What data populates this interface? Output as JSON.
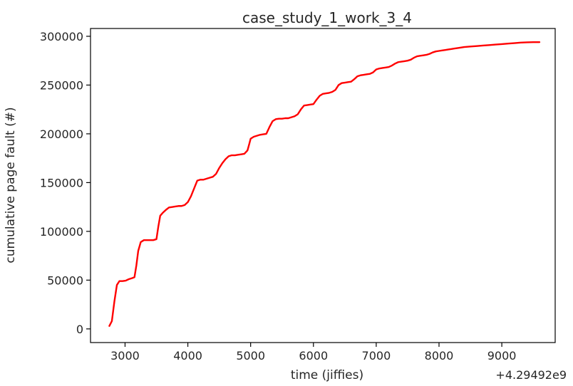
{
  "chart_data": {
    "type": "line",
    "title": "case_study_1_work_3_4",
    "xlabel": "time (jiffies)",
    "ylabel": "cumulative page fault (#)",
    "x_offset_label": "+4.29492e9",
    "xlim": [
      2450,
      9850
    ],
    "ylim": [
      -14000,
      308000
    ],
    "x_ticks": [
      3000,
      4000,
      5000,
      6000,
      7000,
      8000,
      9000
    ],
    "y_ticks": [
      0,
      50000,
      100000,
      150000,
      200000,
      250000,
      300000
    ],
    "grid": false,
    "series": [
      {
        "color": "#ff0000",
        "x": [
          2750,
          2790,
          2830,
          2870,
          2910,
          2960,
          3010,
          3060,
          3110,
          3150,
          3180,
          3210,
          3250,
          3300,
          3350,
          3400,
          3450,
          3500,
          3530,
          3560,
          3600,
          3650,
          3700,
          3750,
          3800,
          3850,
          3900,
          3950,
          4000,
          4050,
          4100,
          4150,
          4200,
          4250,
          4300,
          4350,
          4400,
          4450,
          4500,
          4550,
          4600,
          4650,
          4700,
          4750,
          4800,
          4850,
          4900,
          4950,
          4980,
          5000,
          5050,
          5100,
          5150,
          5200,
          5250,
          5300,
          5350,
          5400,
          5450,
          5500,
          5550,
          5600,
          5650,
          5700,
          5750,
          5800,
          5850,
          5900,
          5950,
          6000,
          6050,
          6100,
          6150,
          6200,
          6250,
          6300,
          6350,
          6400,
          6450,
          6500,
          6550,
          6600,
          6650,
          6700,
          6750,
          6800,
          6850,
          6900,
          6950,
          7000,
          7050,
          7100,
          7150,
          7200,
          7250,
          7300,
          7350,
          7400,
          7450,
          7500,
          7550,
          7600,
          7650,
          7700,
          7750,
          7800,
          7850,
          7900,
          7950,
          8000,
          8050,
          8100,
          8150,
          8200,
          8250,
          8300,
          8400,
          8500,
          8600,
          8700,
          8800,
          8900,
          9000,
          9100,
          9200,
          9300,
          9400,
          9500,
          9600
        ],
        "y": [
          3000,
          8000,
          28000,
          45000,
          49000,
          49000,
          49500,
          51000,
          52000,
          53000,
          65000,
          80000,
          89000,
          91000,
          91000,
          91000,
          91000,
          92000,
          105000,
          116000,
          119000,
          122000,
          124500,
          125000,
          125500,
          126000,
          126000,
          127000,
          130000,
          136000,
          144000,
          152000,
          153000,
          153000,
          154000,
          155000,
          156000,
          159000,
          165000,
          170000,
          174000,
          177000,
          178000,
          178000,
          178500,
          179000,
          179500,
          183000,
          190000,
          195000,
          197000,
          198000,
          199000,
          199500,
          200000,
          207000,
          213000,
          215000,
          215500,
          215500,
          216000,
          216000,
          217000,
          218000,
          220000,
          225000,
          229000,
          229500,
          230000,
          230500,
          235000,
          239000,
          241000,
          241500,
          242000,
          243000,
          245000,
          250000,
          252000,
          252500,
          253000,
          253500,
          256000,
          259000,
          260000,
          260500,
          261000,
          261500,
          263000,
          266000,
          267000,
          267500,
          268000,
          268500,
          270000,
          272000,
          273500,
          274000,
          274500,
          275000,
          276000,
          278000,
          279500,
          280000,
          280500,
          281000,
          282000,
          283500,
          284500,
          285000,
          285500,
          286000,
          286500,
          287000,
          287500,
          288000,
          289000,
          289500,
          290000,
          290500,
          291000,
          291500,
          292000,
          292500,
          293000,
          293500,
          293800,
          294000,
          294000
        ]
      }
    ]
  }
}
